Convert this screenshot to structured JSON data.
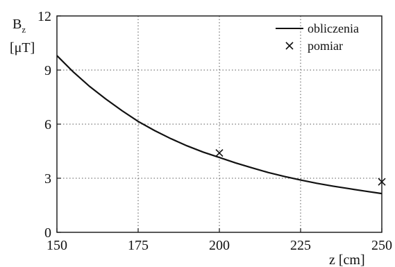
{
  "chart_data": {
    "type": "line",
    "x_label": "z [cm]",
    "y_label_main": "B",
    "y_label_sub": "z",
    "y_label_unit": "[μT]",
    "xlim": [
      150,
      250
    ],
    "ylim": [
      0,
      12
    ],
    "x_ticks": [
      150,
      175,
      200,
      225,
      250
    ],
    "y_ticks": [
      0,
      3,
      6,
      9,
      12
    ],
    "grid": true,
    "legend_placement": "top-right",
    "series": [
      {
        "name": "obliczenia",
        "style": "line",
        "color": "#111111",
        "x": [
          150,
          155,
          160,
          165,
          170,
          175,
          180,
          185,
          190,
          195,
          200,
          205,
          210,
          215,
          220,
          225,
          230,
          235,
          240,
          245,
          250
        ],
        "y": [
          9.8,
          8.9,
          8.1,
          7.4,
          6.75,
          6.15,
          5.65,
          5.2,
          4.8,
          4.45,
          4.15,
          3.85,
          3.58,
          3.32,
          3.1,
          2.9,
          2.72,
          2.56,
          2.42,
          2.28,
          2.15
        ]
      },
      {
        "name": "pomiar",
        "style": "marker-x",
        "color": "#111111",
        "x": [
          200,
          250
        ],
        "y": [
          4.4,
          2.8
        ]
      }
    ]
  }
}
